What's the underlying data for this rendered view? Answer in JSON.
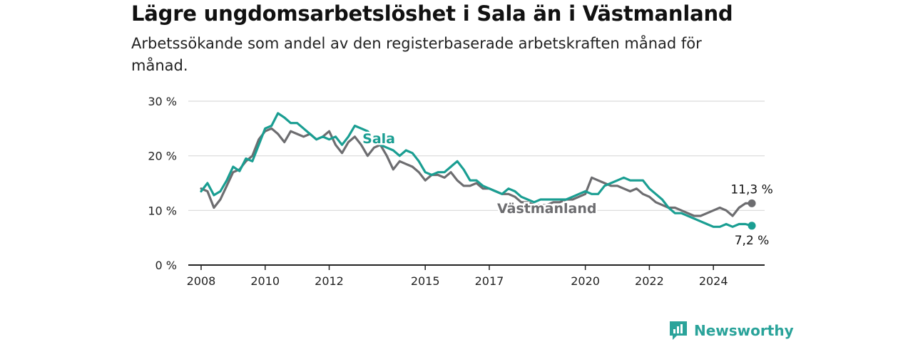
{
  "title": "Lägre ungdomsarbetslöshet i Sala än i Västmanland",
  "subtitle": "Arbetssökande som andel av den registerbaserade arbetskraften månad för månad.",
  "brand": {
    "name": "Newsworthy",
    "icon": "bar-chart-icon"
  },
  "colors": {
    "sala": "#1a9e92",
    "vastmanland": "#6d6d70",
    "grid": "#d9d9d9",
    "axis": "#222222",
    "brand": "#2aa39a"
  },
  "chart_data": {
    "type": "line",
    "title": "Lägre ungdomsarbetslöshet i Sala än i Västmanland",
    "subtitle": "Arbetssökande som andel av den registerbaserade arbetskraften månad för månad.",
    "xlabel": "",
    "ylabel": "",
    "ylim": [
      0,
      30
    ],
    "xlim": [
      2007.6,
      2025.6
    ],
    "yticks": [
      0,
      10,
      20,
      30
    ],
    "ytick_labels": [
      "0 %",
      "10 %",
      "20 %",
      "30 %"
    ],
    "xticks": [
      2008,
      2010,
      2012,
      2015,
      2017,
      2020,
      2022,
      2024
    ],
    "xtick_labels": [
      "2008",
      "2010",
      "2012",
      "2015",
      "2017",
      "2020",
      "2022",
      "2024"
    ],
    "grid": true,
    "series": [
      {
        "name": "Sala",
        "color": "#1a9e92",
        "end_label": "7,2 %",
        "x": [
          2008.0,
          2008.2,
          2008.4,
          2008.6,
          2008.8,
          2009.0,
          2009.2,
          2009.4,
          2009.6,
          2009.8,
          2010.0,
          2010.2,
          2010.4,
          2010.6,
          2010.8,
          2011.0,
          2011.2,
          2011.4,
          2011.6,
          2011.8,
          2012.0,
          2012.2,
          2012.4,
          2012.6,
          2012.8,
          2013.0,
          2013.2,
          2013.4,
          2013.6,
          2013.8,
          2014.0,
          2014.2,
          2014.4,
          2014.6,
          2014.8,
          2015.0,
          2015.2,
          2015.4,
          2015.6,
          2015.8,
          2016.0,
          2016.2,
          2016.4,
          2016.6,
          2016.8,
          2017.0,
          2017.2,
          2017.4,
          2017.6,
          2017.8,
          2018.0,
          2018.2,
          2018.4,
          2018.6,
          2018.8,
          2019.0,
          2019.2,
          2019.4,
          2019.6,
          2019.8,
          2020.0,
          2020.2,
          2020.4,
          2020.6,
          2020.8,
          2021.0,
          2021.2,
          2021.4,
          2021.6,
          2021.8,
          2022.0,
          2022.2,
          2022.4,
          2022.6,
          2022.8,
          2023.0,
          2023.2,
          2023.4,
          2023.6,
          2023.8,
          2024.0,
          2024.2,
          2024.4,
          2024.6,
          2024.8,
          2025.0,
          2025.2
        ],
        "y": [
          13.5,
          15.0,
          12.8,
          13.5,
          15.5,
          18.0,
          17.2,
          19.5,
          19.0,
          22.0,
          25.0,
          25.5,
          27.8,
          27.0,
          26.0,
          26.0,
          25.0,
          24.0,
          23.0,
          23.5,
          23.0,
          23.5,
          22.0,
          23.5,
          25.5,
          25.0,
          24.5,
          23.0,
          22.0,
          21.5,
          21.0,
          20.0,
          21.0,
          20.5,
          19.0,
          17.0,
          16.5,
          17.0,
          17.0,
          18.0,
          19.0,
          17.5,
          15.5,
          15.5,
          14.5,
          14.0,
          13.5,
          13.0,
          14.0,
          13.5,
          12.5,
          12.0,
          11.5,
          12.0,
          12.0,
          12.0,
          12.0,
          12.0,
          12.5,
          13.0,
          13.5,
          13.0,
          13.0,
          14.5,
          15.0,
          15.5,
          16.0,
          15.5,
          15.5,
          15.5,
          14.0,
          13.0,
          12.0,
          10.5,
          9.5,
          9.5,
          9.0,
          8.5,
          8.0,
          7.5,
          7.0,
          7.0,
          7.5,
          7.0,
          7.5,
          7.5,
          7.2
        ]
      },
      {
        "name": "Västmanland",
        "color": "#6d6d70",
        "end_label": "11,3 %",
        "x": [
          2008.0,
          2008.2,
          2008.4,
          2008.6,
          2008.8,
          2009.0,
          2009.2,
          2009.4,
          2009.6,
          2009.8,
          2010.0,
          2010.2,
          2010.4,
          2010.6,
          2010.8,
          2011.0,
          2011.2,
          2011.4,
          2011.6,
          2011.8,
          2012.0,
          2012.2,
          2012.4,
          2012.6,
          2012.8,
          2013.0,
          2013.2,
          2013.4,
          2013.6,
          2013.8,
          2014.0,
          2014.2,
          2014.4,
          2014.6,
          2014.8,
          2015.0,
          2015.2,
          2015.4,
          2015.6,
          2015.8,
          2016.0,
          2016.2,
          2016.4,
          2016.6,
          2016.8,
          2017.0,
          2017.2,
          2017.4,
          2017.6,
          2017.8,
          2018.0,
          2018.2,
          2018.4,
          2018.6,
          2018.8,
          2019.0,
          2019.2,
          2019.4,
          2019.6,
          2019.8,
          2020.0,
          2020.2,
          2020.4,
          2020.6,
          2020.8,
          2021.0,
          2021.2,
          2021.4,
          2021.6,
          2021.8,
          2022.0,
          2022.2,
          2022.4,
          2022.6,
          2022.8,
          2023.0,
          2023.2,
          2023.4,
          2023.6,
          2023.8,
          2024.0,
          2024.2,
          2024.4,
          2024.6,
          2024.8,
          2025.0,
          2025.2
        ],
        "y": [
          14.0,
          13.5,
          10.5,
          12.0,
          14.5,
          17.0,
          17.5,
          19.0,
          20.0,
          23.0,
          24.5,
          25.0,
          24.0,
          22.5,
          24.5,
          24.0,
          23.5,
          24.0,
          23.0,
          23.5,
          24.5,
          22.0,
          20.5,
          22.5,
          23.5,
          22.0,
          20.0,
          21.5,
          22.0,
          20.0,
          17.5,
          19.0,
          18.5,
          18.0,
          17.0,
          15.5,
          16.5,
          16.5,
          16.0,
          17.0,
          15.5,
          14.5,
          14.5,
          15.0,
          14.0,
          14.0,
          13.5,
          13.0,
          13.0,
          12.5,
          11.5,
          11.5,
          11.0,
          11.0,
          11.0,
          11.5,
          11.5,
          12.0,
          12.0,
          12.5,
          13.0,
          16.0,
          15.5,
          15.0,
          14.5,
          14.5,
          14.0,
          13.5,
          14.0,
          13.0,
          12.5,
          11.5,
          11.0,
          10.5,
          10.5,
          10.0,
          9.5,
          9.0,
          9.0,
          9.5,
          10.0,
          10.5,
          10.0,
          9.0,
          10.5,
          11.3,
          11.3
        ]
      }
    ],
    "annotations": [
      {
        "text": "Sala",
        "series": "Sala"
      },
      {
        "text": "Västmanland",
        "series": "Västmanland"
      }
    ]
  }
}
